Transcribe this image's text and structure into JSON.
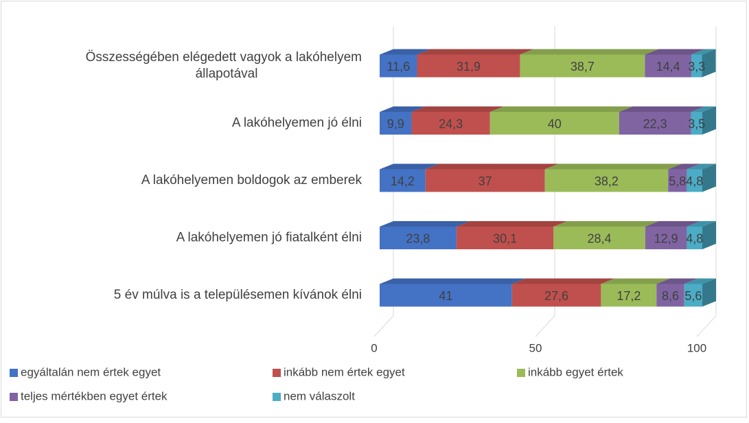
{
  "chart_data": {
    "type": "stacked-bar-3d",
    "categories": [
      [
        "Összességében elégedett vagyok a lakóhelyem",
        "állapotával"
      ],
      "A lakóhelyemen jó élni",
      "A lakóhelyemen boldogok az emberek",
      "A lakóhelyemen jó fiatalként élni",
      "5 év múlva is a településemen kívánok élni"
    ],
    "series": [
      {
        "name": "egyáltalán nem értek egyet",
        "color": "#4472c4",
        "values": [
          11.6,
          9.9,
          14.2,
          23.8,
          41
        ],
        "value_labels": [
          "11,6",
          "9,9",
          "14,2",
          "23,8",
          "41"
        ]
      },
      {
        "name": "inkább nem értek egyet",
        "color": "#c0504d",
        "values": [
          31.9,
          24.3,
          37,
          30.1,
          27.6
        ],
        "value_labels": [
          "31,9",
          "24,3",
          "37",
          "30,1",
          "27,6"
        ]
      },
      {
        "name": "inkább egyet értek",
        "color": "#9bbb59",
        "values": [
          38.7,
          40,
          38.2,
          28.4,
          17.2
        ],
        "value_labels": [
          "38,7",
          "40",
          "38,2",
          "28,4",
          "17,2"
        ]
      },
      {
        "name": "teljes mértékben egyet értek",
        "color": "#8064a2",
        "values": [
          14.4,
          22.3,
          5.8,
          12.9,
          8.6
        ],
        "value_labels": [
          "14,4",
          "22,3",
          "5,8",
          "12,9",
          "8,6"
        ]
      },
      {
        "name": "nem válaszolt",
        "color": "#4bacc6",
        "values": [
          3.3,
          3.5,
          4.8,
          4.8,
          5.6
        ],
        "value_labels": [
          "3,3",
          "3,5",
          "4,8",
          "4,8",
          "5,6"
        ]
      }
    ],
    "xlim": [
      0,
      100
    ],
    "xticks": [
      0,
      50,
      100
    ],
    "grid": true
  }
}
